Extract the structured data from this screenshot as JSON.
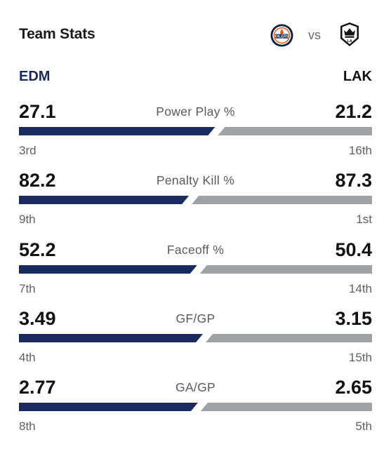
{
  "header": {
    "title": "Team Stats",
    "vs_label": "vs",
    "home_logo_text": "OILERS",
    "away_logo_text": "LA"
  },
  "teams": {
    "left": {
      "abbr": "EDM",
      "color": "#1b2a5e"
    },
    "right": {
      "abbr": "LAK",
      "color": "#9ea2a4"
    }
  },
  "stats": [
    {
      "label": "Power Play %",
      "left_value": "27.1",
      "right_value": "21.2",
      "left_rank": "3rd",
      "right_rank": "16th"
    },
    {
      "label": "Penalty Kill %",
      "left_value": "82.2",
      "right_value": "87.3",
      "left_rank": "9th",
      "right_rank": "1st"
    },
    {
      "label": "Faceoff %",
      "left_value": "52.2",
      "right_value": "50.4",
      "left_rank": "7th",
      "right_rank": "14th"
    },
    {
      "label": "GF/GP",
      "left_value": "3.49",
      "right_value": "3.15",
      "left_rank": "4th",
      "right_rank": "15th"
    },
    {
      "label": "GA/GP",
      "left_value": "2.77",
      "right_value": "2.65",
      "left_rank": "8th",
      "right_rank": "5th"
    }
  ]
}
